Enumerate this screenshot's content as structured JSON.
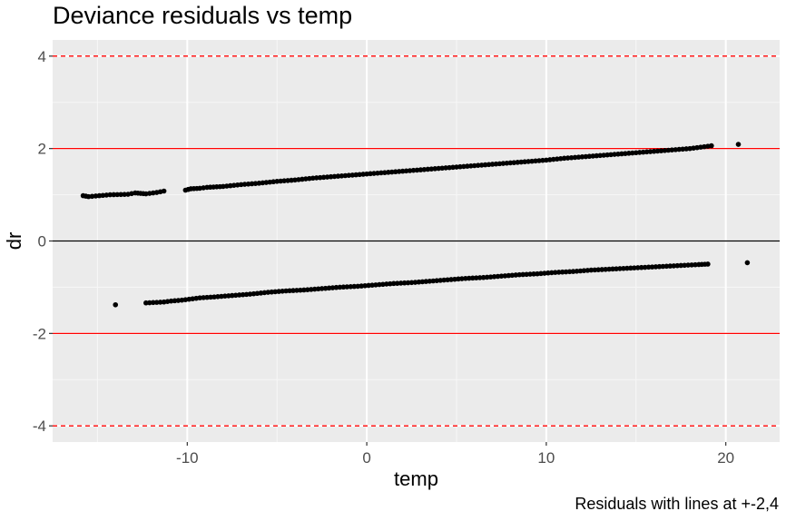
{
  "chart_data": {
    "type": "scatter",
    "title": "Deviance residuals vs temp",
    "caption": "Residuals with lines at +-2,4",
    "xlabel": "temp",
    "ylabel": "dr",
    "xlim": [
      -17.5,
      23.0
    ],
    "ylim": [
      -4.35,
      4.35
    ],
    "x_ticks": [
      -10,
      0,
      10,
      20
    ],
    "x_tick_labels": [
      "-10",
      "0",
      "10",
      "20"
    ],
    "y_ticks": [
      -4,
      -2,
      0,
      2,
      4
    ],
    "y_tick_labels": [
      "-4",
      "-2",
      "0",
      "2",
      "4"
    ],
    "grid": true,
    "reference_lines": [
      {
        "y": 0,
        "color": "#000000",
        "style": "solid"
      },
      {
        "y": 2,
        "color": "#ff0000",
        "style": "solid"
      },
      {
        "y": -2,
        "color": "#ff0000",
        "style": "solid"
      },
      {
        "y": 4,
        "color": "#ff0000",
        "style": "dashed"
      },
      {
        "y": -4,
        "color": "#ff0000",
        "style": "dashed"
      }
    ],
    "series": [
      {
        "points": [
          [
            -15.8,
            0.98
          ],
          [
            -15.5,
            0.96
          ],
          [
            -14.3,
            1.0
          ],
          [
            -13.3,
            1.01
          ],
          [
            -12.9,
            1.04
          ],
          [
            -12.6,
            1.03
          ],
          [
            -12.3,
            1.02
          ],
          [
            -11.7,
            1.05
          ],
          [
            -11.3,
            1.08
          ],
          [
            -10.1,
            1.1
          ],
          [
            -9.8,
            1.13
          ],
          [
            -9.3,
            1.14
          ],
          [
            -8.9,
            1.16
          ],
          [
            -8.0,
            1.18
          ],
          [
            -7.0,
            1.22
          ],
          [
            -6.0,
            1.25
          ],
          [
            -5.0,
            1.29
          ],
          [
            -4.0,
            1.32
          ],
          [
            -3.0,
            1.36
          ],
          [
            -2.0,
            1.39
          ],
          [
            -1.0,
            1.42
          ],
          [
            0.0,
            1.45
          ],
          [
            1.0,
            1.48
          ],
          [
            2.0,
            1.51
          ],
          [
            3.0,
            1.54
          ],
          [
            4.0,
            1.57
          ],
          [
            5.0,
            1.6
          ],
          [
            6.0,
            1.63
          ],
          [
            7.0,
            1.66
          ],
          [
            8.0,
            1.69
          ],
          [
            9.0,
            1.72
          ],
          [
            10.0,
            1.75
          ],
          [
            11.0,
            1.79
          ],
          [
            12.0,
            1.82
          ],
          [
            13.0,
            1.85
          ],
          [
            14.0,
            1.88
          ],
          [
            15.0,
            1.91
          ],
          [
            16.0,
            1.94
          ],
          [
            17.0,
            1.97
          ],
          [
            18.0,
            2.0
          ],
          [
            19.2,
            2.06
          ],
          [
            20.7,
            2.09
          ]
        ]
      },
      {
        "points": [
          [
            -14.0,
            -1.38
          ],
          [
            -12.3,
            -1.34
          ],
          [
            -11.3,
            -1.32
          ],
          [
            -10.9,
            -1.3
          ],
          [
            -10.3,
            -1.28
          ],
          [
            -9.3,
            -1.23
          ],
          [
            -8.5,
            -1.21
          ],
          [
            -7.5,
            -1.18
          ],
          [
            -6.5,
            -1.15
          ],
          [
            -5.5,
            -1.11
          ],
          [
            -4.5,
            -1.08
          ],
          [
            -3.5,
            -1.06
          ],
          [
            -2.5,
            -1.03
          ],
          [
            -1.5,
            -1.0
          ],
          [
            -0.5,
            -0.98
          ],
          [
            0.5,
            -0.95
          ],
          [
            1.5,
            -0.92
          ],
          [
            2.5,
            -0.9
          ],
          [
            3.5,
            -0.87
          ],
          [
            4.5,
            -0.84
          ],
          [
            5.5,
            -0.81
          ],
          [
            6.5,
            -0.79
          ],
          [
            7.5,
            -0.76
          ],
          [
            8.5,
            -0.73
          ],
          [
            9.5,
            -0.71
          ],
          [
            10.5,
            -0.68
          ],
          [
            11.5,
            -0.66
          ],
          [
            12.5,
            -0.63
          ],
          [
            13.5,
            -0.61
          ],
          [
            14.5,
            -0.59
          ],
          [
            15.5,
            -0.57
          ],
          [
            16.5,
            -0.55
          ],
          [
            17.5,
            -0.53
          ],
          [
            18.5,
            -0.51
          ],
          [
            19.0,
            -0.5
          ],
          [
            21.2,
            -0.47
          ]
        ]
      }
    ]
  }
}
